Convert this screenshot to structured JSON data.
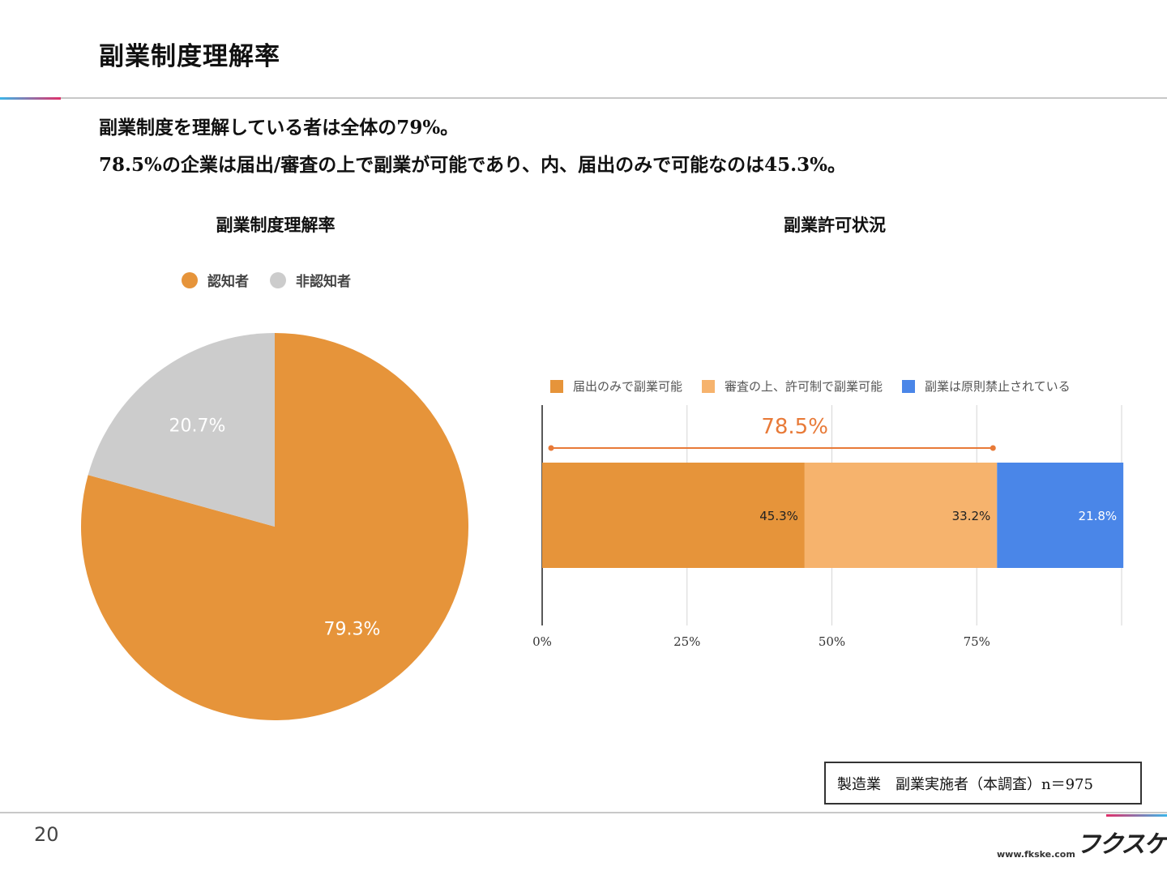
{
  "page": {
    "title": "副業制度理解率",
    "summary_line1": "副業制度を理解している者は全体の79%。",
    "summary_line2": "78.5%の企業は届出/審査の上で副業が可能であり、内、届出のみで可能なのは45.3%。",
    "note": "製造業　副業実施者（本調査）n＝975",
    "page_number": "20",
    "brand_logo": "フクスケ",
    "brand_url": "www.fkske.com"
  },
  "colors": {
    "orange": "#e6943a",
    "light_orange": "#f6b36d",
    "gray": "#cccccc",
    "blue": "#4a86e8",
    "annotation": "#e87a38"
  },
  "chart_data": [
    {
      "type": "pie",
      "title": "副業制度理解率",
      "legend_position": "top",
      "slices": [
        {
          "name": "認知者",
          "value": 79.3,
          "label": "79.3%",
          "color": "#e6943a"
        },
        {
          "name": "非認知者",
          "value": 20.7,
          "label": "20.7%",
          "color": "#cccccc"
        }
      ]
    },
    {
      "type": "bar",
      "orientation": "horizontal",
      "stacked": true,
      "title": "副業許可状況",
      "legend_position": "top",
      "xlim": [
        0,
        100
      ],
      "x_ticks": [
        "0%",
        "25%",
        "50%",
        "75%"
      ],
      "x_tick_values": [
        0,
        25,
        50,
        75
      ],
      "grid": true,
      "series": [
        {
          "name": "届出のみで副業可能",
          "value": 45.3,
          "label": "45.3%",
          "color": "#e6943a"
        },
        {
          "name": "審査の上、許可制で副業可能",
          "value": 33.2,
          "label": "33.2%",
          "color": "#f6b36d"
        },
        {
          "name": "副業は原則禁止されている",
          "value": 21.8,
          "label": "21.8%",
          "color": "#4a86e8"
        }
      ],
      "annotation": {
        "label": "78.5%",
        "from": 0,
        "to": 78.5
      }
    }
  ]
}
